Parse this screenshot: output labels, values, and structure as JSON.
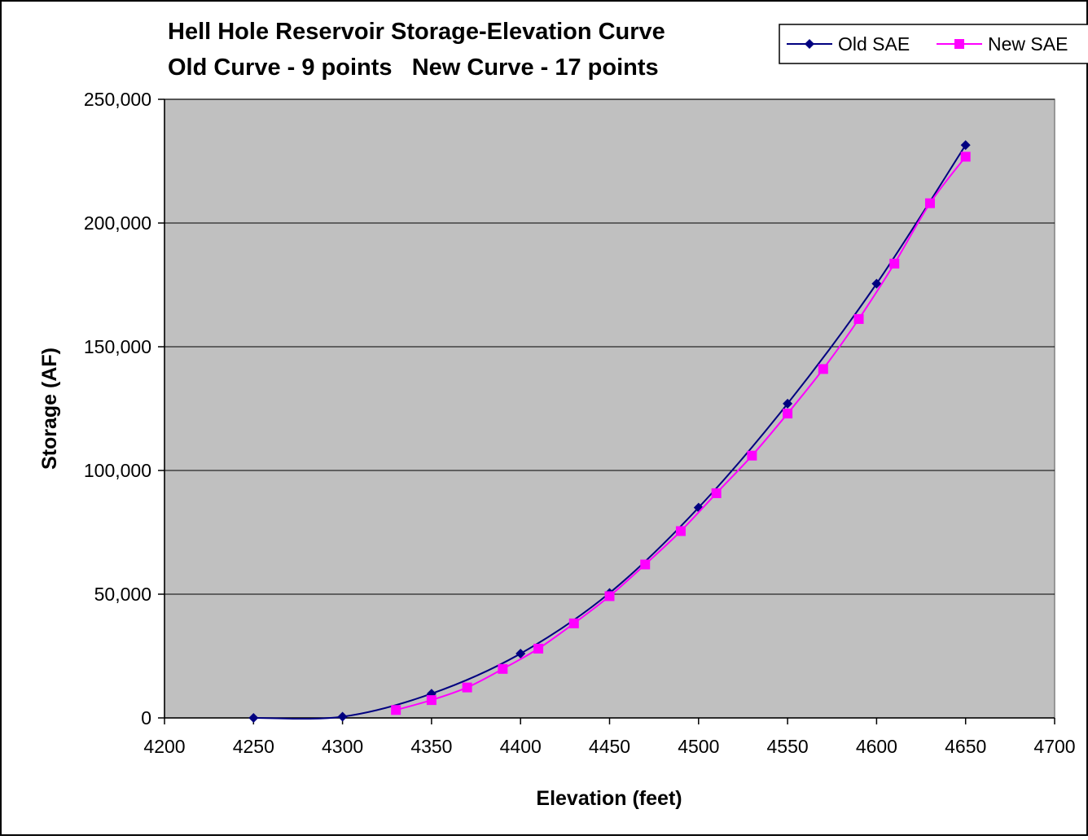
{
  "chart_data": {
    "type": "scatter",
    "title": "Hell Hole Reservoir Storage-Elevation Curve",
    "subtitle": "Old Curve - 9 points   New Curve - 17 points",
    "xlabel": "Elevation (feet)",
    "ylabel": "Storage (AF)",
    "xlim": [
      4200,
      4700
    ],
    "ylim": [
      0,
      250000
    ],
    "x_ticks": [
      4200,
      4250,
      4300,
      4350,
      4400,
      4450,
      4500,
      4550,
      4600,
      4650,
      4700
    ],
    "x_tick_labels": [
      "4200",
      "4250",
      "4300",
      "4350",
      "4400",
      "4450",
      "4500",
      "4550",
      "4600",
      "4650",
      "4700"
    ],
    "y_ticks": [
      0,
      50000,
      100000,
      150000,
      200000,
      250000
    ],
    "y_tick_labels": [
      "0",
      "50,000",
      "100,000",
      "150,000",
      "200,000",
      "250,000"
    ],
    "grid": "horizontal",
    "legend_position": "top-right",
    "plot_background": "#c0c0c0",
    "series": [
      {
        "name": "Old SAE",
        "color": "#000080",
        "marker": "diamond",
        "points": [
          [
            4250,
            0
          ],
          [
            4300,
            500
          ],
          [
            4350,
            9800
          ],
          [
            4400,
            26000
          ],
          [
            4450,
            50500
          ],
          [
            4500,
            85000
          ],
          [
            4550,
            127000
          ],
          [
            4600,
            175500
          ],
          [
            4650,
            231500
          ]
        ]
      },
      {
        "name": "New SAE",
        "color": "#ff00ff",
        "marker": "square",
        "points": [
          [
            4330,
            3200
          ],
          [
            4350,
            7200
          ],
          [
            4370,
            12300
          ],
          [
            4390,
            19800
          ],
          [
            4410,
            28000
          ],
          [
            4430,
            38200
          ],
          [
            4450,
            49200
          ],
          [
            4470,
            62000
          ],
          [
            4490,
            75500
          ],
          [
            4510,
            90800
          ],
          [
            4530,
            106000
          ],
          [
            4550,
            123000
          ],
          [
            4570,
            141000
          ],
          [
            4590,
            161200
          ],
          [
            4610,
            183600
          ],
          [
            4630,
            208000
          ],
          [
            4650,
            226800
          ]
        ]
      }
    ]
  }
}
